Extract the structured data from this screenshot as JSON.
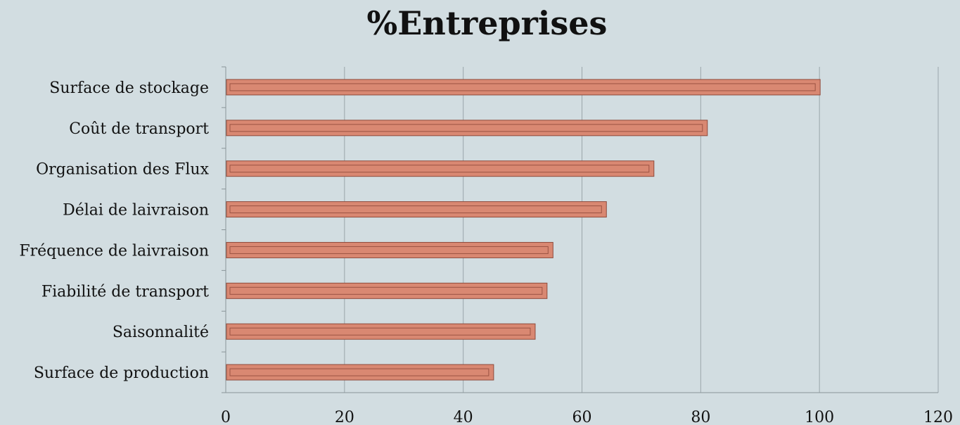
{
  "chart_data": {
    "type": "bar",
    "orientation": "horizontal",
    "title": "%Entreprises",
    "categories": [
      "Surface de stockage",
      "Coût de transport",
      "Organisation des Flux",
      "Délai de laivraison",
      "Fréquence de laivraison",
      "Fiabilité de transport",
      "Saisonnalité",
      "Surface de production"
    ],
    "values": [
      100,
      81,
      72,
      64,
      55,
      54,
      52,
      45
    ],
    "xlim": [
      0,
      120
    ],
    "xticks": [
      0,
      20,
      40,
      60,
      80,
      100,
      120
    ],
    "xtick_labels": [
      "0",
      "20",
      "40",
      "60",
      "80",
      "100",
      "120"
    ],
    "grid": "vertical",
    "legend": "none",
    "colors": {
      "background": "#d2dde1",
      "bar_fill": "#d98872",
      "bar_stroke": "#8f4a3b",
      "grid": "#9aa5aa",
      "axis": "#8a9599",
      "text": "#111111"
    }
  }
}
